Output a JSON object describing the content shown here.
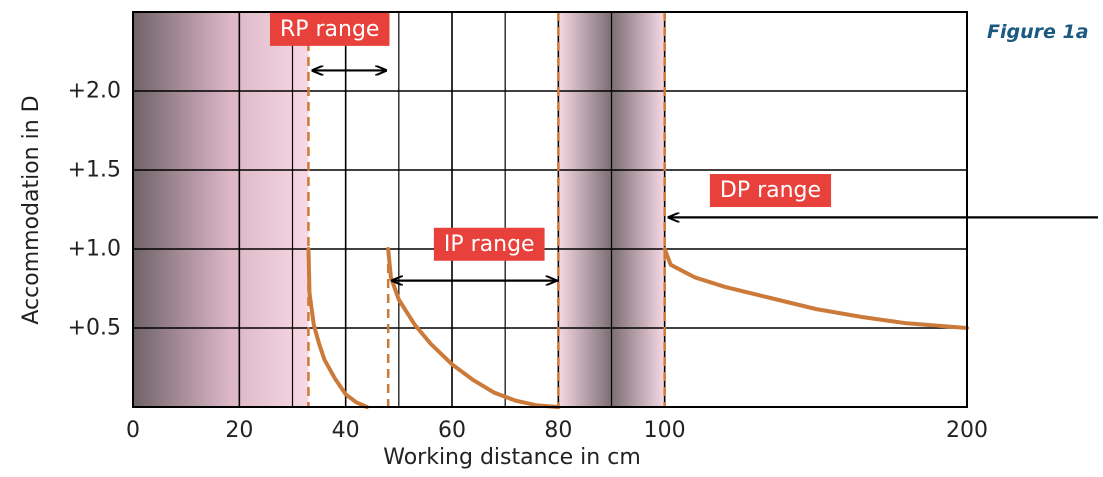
{
  "chart_data": {
    "type": "line",
    "figure_label": "Figure 1a",
    "xlabel": "Working distance in cm",
    "ylabel": "Accommodation in D",
    "x_ticks": [
      {
        "value": 0,
        "label": "0"
      },
      {
        "value": 20,
        "label": "20"
      },
      {
        "value": 40,
        "label": "40"
      },
      {
        "value": 60,
        "label": "60"
      },
      {
        "value": 80,
        "label": "80"
      },
      {
        "value": 100,
        "label": "100"
      },
      {
        "value": 200,
        "label": "200"
      }
    ],
    "y_ticks": [
      {
        "value": 0.5,
        "label": "+0.5"
      },
      {
        "value": 1.0,
        "label": "+1.0"
      },
      {
        "value": 1.5,
        "label": "+1.5"
      },
      {
        "value": 2.0,
        "label": "+2.0"
      }
    ],
    "ylim": [
      0,
      2.5
    ],
    "x_breaks": [
      {
        "value": 0,
        "pos": 0.0
      },
      {
        "value": 100,
        "pos": 0.6375
      },
      {
        "value": 200,
        "pos": 1.0
      }
    ],
    "grid": true,
    "shaded_zones": [
      {
        "x_start": 0,
        "x_end": 33,
        "style": "left-fade"
      },
      {
        "x_start": 80,
        "x_end": 100,
        "style": "center-dark"
      }
    ],
    "ranges": [
      {
        "label": "RP range",
        "arrow_from": 33,
        "arrow_to": 48,
        "arrow_y": 2.13,
        "arrowheads": "both",
        "label_x": 37,
        "label_y": 2.39
      },
      {
        "label": "IP range",
        "arrow_from": 48,
        "arrow_to": 80,
        "arrow_y": 0.8,
        "arrowheads": "both",
        "label_x": 67,
        "label_y": 1.03
      },
      {
        "label": "DP range",
        "arrow_from": 100,
        "arrow_to": 246,
        "arrow_y": 1.2,
        "arrowheads": "start",
        "label_x": 135,
        "label_y": 1.37
      }
    ],
    "dashed_markers": [
      {
        "x": 33,
        "y_top": 2.5
      },
      {
        "x": 48,
        "y_top": 1.0
      },
      {
        "x": 80,
        "y_top": 2.5
      },
      {
        "x": 100,
        "y_top": 2.5
      }
    ],
    "series": [
      {
        "color": "#cc7a3a",
        "points": [
          [
            33,
            1.0
          ],
          [
            33.2,
            0.72
          ],
          [
            34,
            0.52
          ],
          [
            35,
            0.4
          ],
          [
            36,
            0.3
          ],
          [
            38,
            0.18
          ],
          [
            40,
            0.08
          ],
          [
            42,
            0.03
          ],
          [
            44,
            0.0
          ]
        ]
      },
      {
        "color": "#cc7a3a",
        "points": [
          [
            48,
            1.0
          ],
          [
            48.5,
            0.82
          ],
          [
            50,
            0.68
          ],
          [
            53,
            0.52
          ],
          [
            56,
            0.4
          ],
          [
            60,
            0.27
          ],
          [
            64,
            0.17
          ],
          [
            68,
            0.09
          ],
          [
            72,
            0.04
          ],
          [
            76,
            0.01
          ],
          [
            80,
            0.0
          ]
        ]
      },
      {
        "color": "#cc7a3a",
        "points": [
          [
            100,
            1.0
          ],
          [
            102,
            0.9
          ],
          [
            110,
            0.82
          ],
          [
            120,
            0.76
          ],
          [
            135,
            0.69
          ],
          [
            150,
            0.62
          ],
          [
            165,
            0.57
          ],
          [
            180,
            0.53
          ],
          [
            200,
            0.5
          ]
        ]
      }
    ]
  }
}
